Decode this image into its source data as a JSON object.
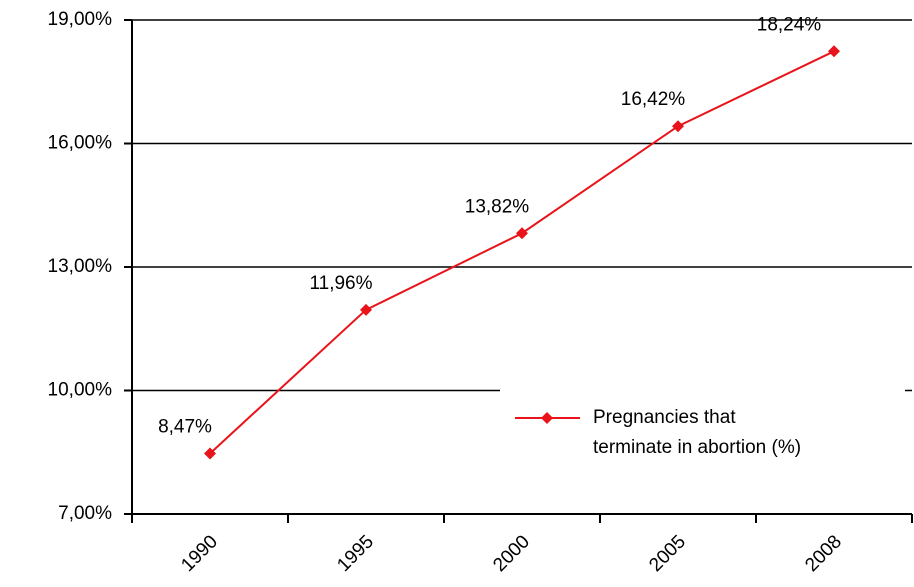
{
  "chart_data": {
    "type": "line",
    "categories": [
      "1990",
      "1995",
      "2000",
      "2005",
      "2008"
    ],
    "series": [
      {
        "name": "Pregnancies that terminate in abortion (%)",
        "color": "#e8141a",
        "values": [
          8.47,
          11.96,
          13.82,
          16.42,
          18.24
        ],
        "value_labels": [
          "8,47%",
          "11,96%",
          "13,82%",
          "16,42%",
          "18,24%"
        ]
      }
    ],
    "ylim": [
      7,
      19
    ],
    "yticks": [
      {
        "value": 7,
        "label": "7,00%"
      },
      {
        "value": 10,
        "label": "10,00%"
      },
      {
        "value": 13,
        "label": "13,00%"
      },
      {
        "value": 16,
        "label": "16,00%"
      },
      {
        "value": 19,
        "label": "19,00%"
      }
    ],
    "grid": true,
    "legend": "right"
  }
}
